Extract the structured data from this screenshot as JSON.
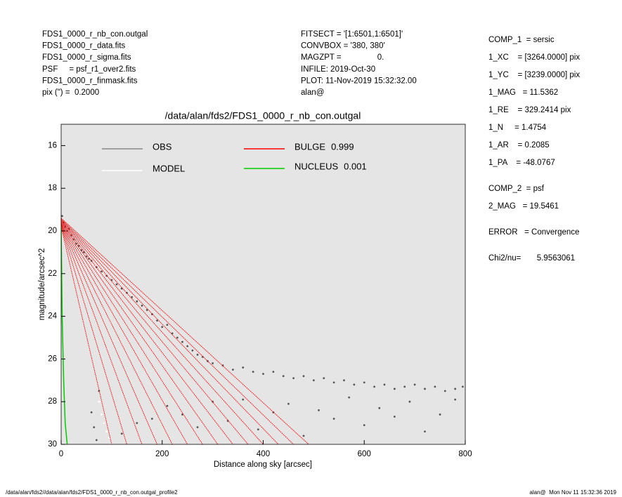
{
  "header": {
    "left": [
      "FDS1_0000_r_nb_con.outgal",
      "FDS1_0000_r_data.fits",
      "FDS1_0000_r_sigma.fits",
      "PSF     = psf_r1_over2.fits",
      "FDS1_0000_r_finmask.fits",
      "pix (\") =  0.2000"
    ],
    "middle": [
      "FITSECT = '[1:6501,1:6501]'",
      "CONVBOX = '380, 380'",
      "MAGZPT =                0.",
      "INFILE: 2019-Oct-30",
      "PLOT: 11-Nov-2019 15:32:32.00",
      "alan@"
    ]
  },
  "panel": [
    "COMP_1  = sersic",
    "1_XC    = [3264.0000] pix",
    "1_YC    = [3239.0000] pix",
    "1_MAG   = 11.5362",
    "1_RE    = 329.2414 pix",
    "1_N     = 1.4754",
    "1_AR    = 0.2085",
    "1_PA    = -48.0767",
    "COMP_2  = psf",
    "2_MAG   = 19.5461",
    "ERROR   = Convergence",
    "Chi2/nu=       5.9563061"
  ],
  "footer": {
    "left": "/data/alan/fds2//data/alan/fds2/FDS1_0000_r_nb_con.outgal_profile2",
    "right": "alan@  Mon Nov 11 15:32:36 2019"
  },
  "chart_data": {
    "type": "scatter",
    "title": "/data/alan/fds2/FDS1_0000_r_nb_con.outgal",
    "xlabel": "Distance along sky [arcsec]",
    "ylabel": "magnitude/arcsec^2",
    "xlim": [
      0,
      800
    ],
    "xticks": [
      0,
      200,
      400,
      600,
      800
    ],
    "ylim": [
      15,
      30
    ],
    "yticks": [
      16,
      18,
      20,
      22,
      24,
      26,
      28,
      30
    ],
    "invert_y": true,
    "background": "#e5e5e5",
    "series": [
      {
        "name": "OBS",
        "color": "#555555",
        "legend_color": "#888888",
        "x": [
          2,
          5,
          8,
          12,
          15,
          20,
          25,
          30,
          35,
          40,
          45,
          50,
          55,
          60,
          70,
          80,
          90,
          100,
          110,
          120,
          130,
          140,
          150,
          160,
          170,
          180,
          190,
          200,
          210,
          220,
          230,
          240,
          250,
          260,
          270,
          280,
          290,
          300,
          320,
          340,
          360,
          380,
          400,
          420,
          440,
          460,
          480,
          500,
          520,
          540,
          560,
          580,
          600,
          620,
          640,
          660,
          680,
          700,
          720,
          740,
          760,
          780,
          795,
          120,
          150,
          180,
          210,
          240,
          270,
          300,
          330,
          360,
          390,
          420,
          450,
          480,
          510,
          540,
          570,
          600,
          630,
          660,
          690,
          720,
          750,
          780,
          60,
          65,
          70,
          75
        ],
        "values": [
          19.3,
          19.6,
          19.8,
          20.0,
          19.9,
          20.2,
          20.4,
          20.6,
          20.7,
          20.9,
          21.0,
          21.2,
          21.3,
          21.4,
          21.7,
          21.9,
          22.1,
          22.3,
          22.5,
          22.7,
          22.9,
          23.1,
          23.3,
          23.5,
          23.7,
          23.9,
          24.2,
          24.5,
          24.4,
          24.8,
          25.0,
          25.2,
          25.4,
          25.6,
          25.8,
          25.9,
          26.1,
          26.2,
          26.3,
          26.5,
          26.4,
          26.6,
          26.7,
          26.6,
          26.8,
          26.9,
          26.8,
          27.0,
          26.9,
          27.1,
          27.0,
          27.2,
          27.1,
          27.3,
          27.2,
          27.4,
          27.3,
          27.2,
          27.4,
          27.3,
          27.5,
          27.4,
          27.3,
          29.5,
          29.0,
          28.8,
          28.2,
          28.6,
          29.2,
          28.0,
          28.9,
          27.9,
          29.3,
          28.5,
          28.1,
          29.6,
          28.4,
          28.8,
          27.8,
          29.1,
          28.3,
          28.7,
          28.0,
          29.4,
          28.6,
          27.9,
          28.5,
          29.2,
          29.8,
          27.5
        ]
      },
      {
        "name": "MODEL",
        "color": "#ffffff",
        "x": [
          75,
          80,
          85,
          90,
          95,
          100
        ],
        "values": [
          28.0,
          28.6,
          29.0,
          29.4,
          29.7,
          30.0
        ]
      },
      {
        "name": "BULGE",
        "fraction": 0.999,
        "color": "#ff0000",
        "lines": [
          {
            "x": [
              0,
              100
            ],
            "values": [
              19.8,
              30
            ]
          },
          {
            "x": [
              0,
              130
            ],
            "values": [
              19.77,
              30
            ]
          },
          {
            "x": [
              0,
              160
            ],
            "values": [
              19.74,
              30
            ]
          },
          {
            "x": [
              0,
              190
            ],
            "values": [
              19.71,
              30
            ]
          },
          {
            "x": [
              0,
              220
            ],
            "values": [
              19.68,
              30
            ]
          },
          {
            "x": [
              0,
              250
            ],
            "values": [
              19.65,
              30
            ]
          },
          {
            "x": [
              0,
              280
            ],
            "values": [
              19.62,
              30
            ]
          },
          {
            "x": [
              0,
              310
            ],
            "values": [
              19.59,
              30
            ]
          },
          {
            "x": [
              0,
              340
            ],
            "values": [
              19.56,
              30
            ]
          },
          {
            "x": [
              0,
              370
            ],
            "values": [
              19.53,
              30
            ]
          },
          {
            "x": [
              0,
              400
            ],
            "values": [
              19.5,
              30
            ]
          },
          {
            "x": [
              0,
              430
            ],
            "values": [
              19.47,
              30
            ]
          },
          {
            "x": [
              0,
              460
            ],
            "values": [
              19.44,
              30
            ]
          },
          {
            "x": [
              0,
              490
            ],
            "values": [
              19.4,
              30
            ]
          }
        ]
      },
      {
        "name": "NUCLEUS",
        "fraction": 0.001,
        "color": "#00cc00",
        "x": [
          0,
          2,
          5,
          8,
          12
        ],
        "values": [
          19.8,
          24,
          27,
          29,
          30
        ]
      }
    ]
  }
}
